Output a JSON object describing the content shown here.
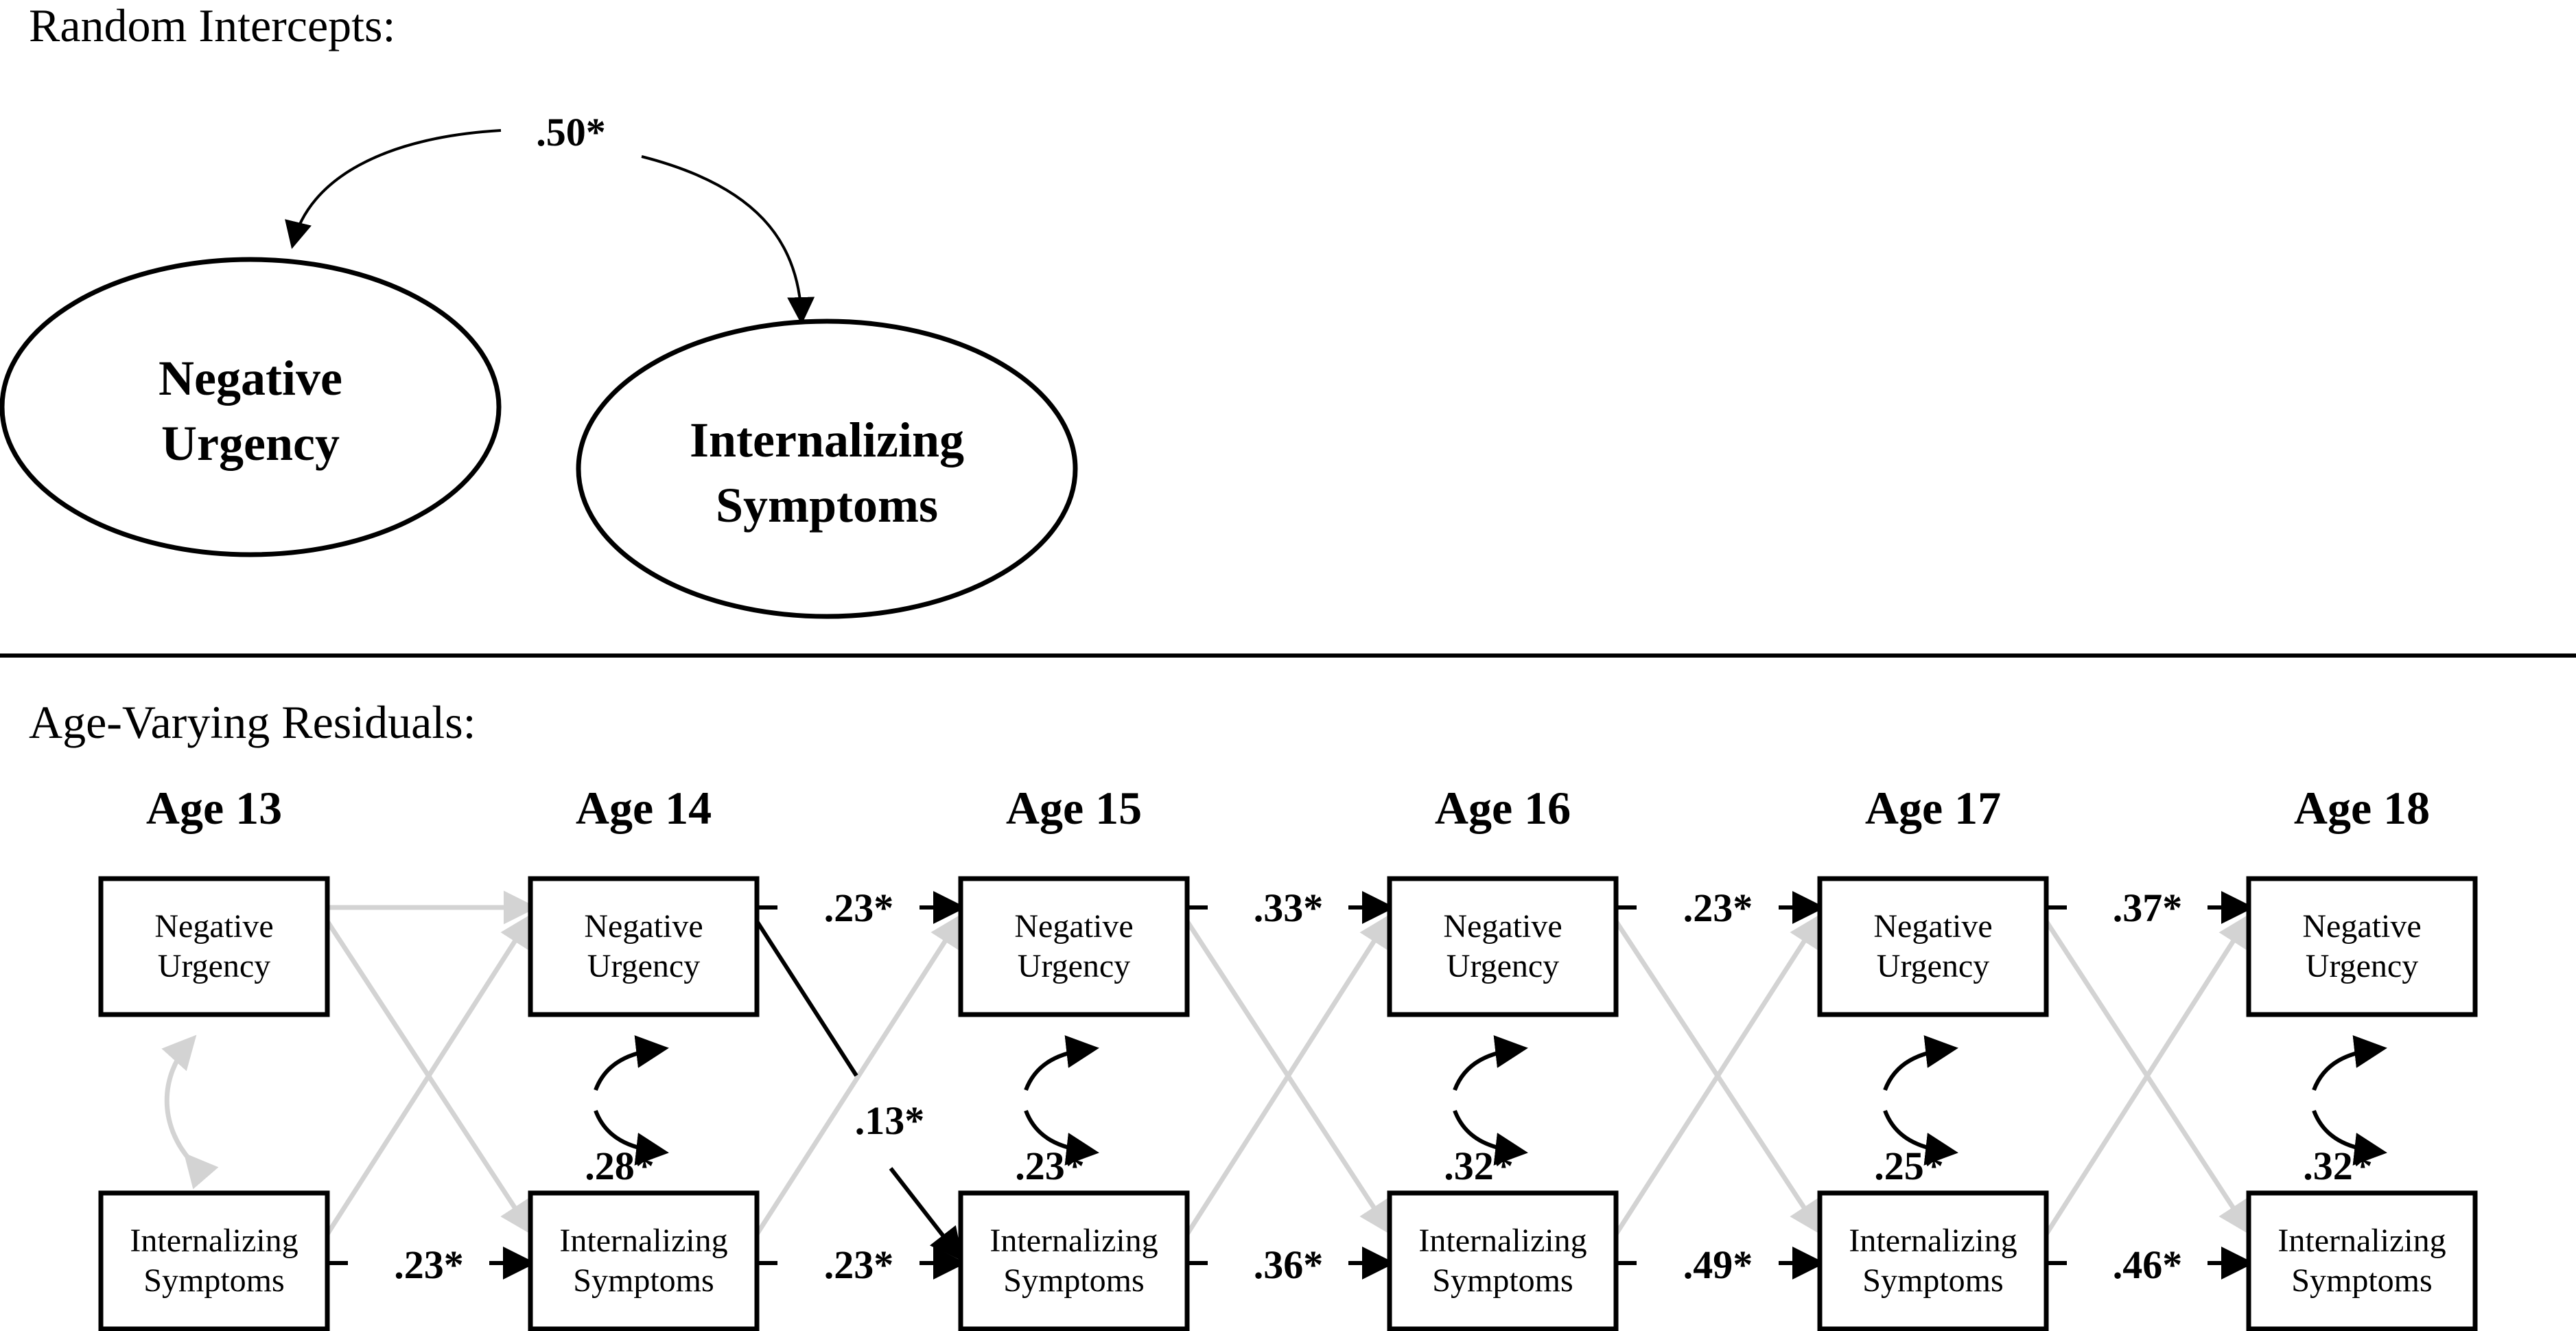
{
  "sections": {
    "intercepts_label": "Random Intercepts:",
    "residuals_label": "Age-Varying Residuals:"
  },
  "intercepts": {
    "correlation": ".50*",
    "left_line1": "Negative",
    "left_line2": "Urgency",
    "right_line1": "Internalizing",
    "right_line2": "Symptoms"
  },
  "boxes": {
    "nu_line1": "Negative",
    "nu_line2": "Urgency",
    "is_line1": "Internalizing",
    "is_line2": "Symptoms"
  },
  "ages": [
    "Age 13",
    "Age 14",
    "Age 15",
    "Age 16",
    "Age 17",
    "Age 18"
  ],
  "coefficients": {
    "nu_autoregressive": [
      "",
      ".23*",
      ".33*",
      ".23*",
      ".37*"
    ],
    "is_autoregressive": [
      ".23*",
      ".23*",
      ".36*",
      ".49*",
      ".46*"
    ],
    "within_covariance": [
      "",
      ".28*",
      ".23*",
      ".32*",
      ".25*",
      ".32*"
    ],
    "cross_lagged_nu_to_is": [
      "",
      ".13*",
      "",
      "",
      ""
    ]
  },
  "colors": {
    "significant": "#000000",
    "nonsignificant": "#d3d3d3"
  }
}
